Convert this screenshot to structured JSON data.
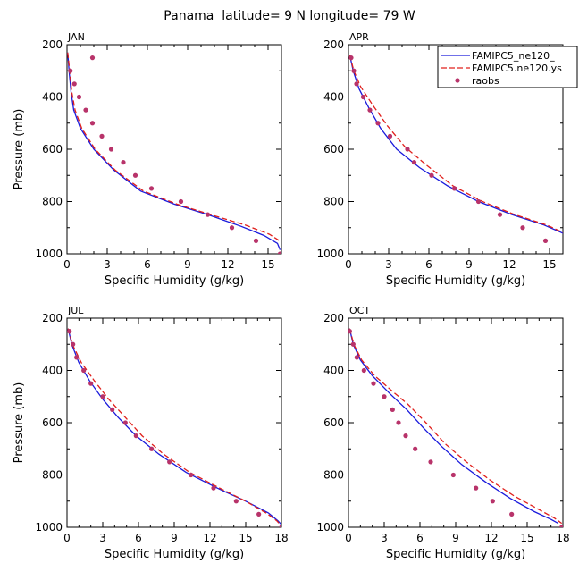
{
  "figure": {
    "title": "Panama  latitude= 9 N longitude= 79 W"
  },
  "legend": {
    "entries": [
      {
        "label": "FAMIPC5_ne120_",
        "style": "solid",
        "color": "#1a1adc"
      },
      {
        "label": "FAMIPC5.ne120.ys",
        "style": "dashed",
        "color": "#e0201c"
      },
      {
        "label": "raobs",
        "style": "dots",
        "color": "#b8336a"
      }
    ]
  },
  "chart_data": [
    {
      "type": "line",
      "panel_label": "JAN",
      "xlabel": "Specific Humidity (g/kg)",
      "ylabel": "Pressure (mb)",
      "xlim": [
        0,
        16
      ],
      "ylim": [
        200,
        1000
      ],
      "y_inverted": true,
      "xticks": [
        0,
        3,
        6,
        9,
        12,
        15,
        18
      ],
      "yticks": [
        200,
        400,
        600,
        800,
        1000
      ],
      "series": [
        {
          "name": "FAMIPC5_ne120_",
          "color": "#1a1adc",
          "dash": "solid",
          "points": [
            [
              0.05,
              230
            ],
            [
              0.15,
              300
            ],
            [
              0.3,
              380
            ],
            [
              0.5,
              450
            ],
            [
              1.0,
              520
            ],
            [
              2.0,
              600
            ],
            [
              3.5,
              680
            ],
            [
              5.5,
              760
            ],
            [
              8.0,
              810
            ],
            [
              10.5,
              850
            ],
            [
              13.0,
              895
            ],
            [
              14.7,
              930
            ],
            [
              15.7,
              960
            ],
            [
              15.9,
              985
            ]
          ]
        },
        {
          "name": "FAMIPC5.ne120.ys",
          "color": "#e0201c",
          "dash": "dashed",
          "points": [
            [
              0.05,
              230
            ],
            [
              0.2,
              300
            ],
            [
              0.35,
              380
            ],
            [
              0.6,
              450
            ],
            [
              1.1,
              520
            ],
            [
              2.1,
              600
            ],
            [
              3.6,
              680
            ],
            [
              5.7,
              760
            ],
            [
              8.2,
              810
            ],
            [
              10.7,
              850
            ],
            [
              13.3,
              890
            ],
            [
              15.1,
              925
            ],
            [
              16.0,
              955
            ],
            [
              16.2,
              985
            ]
          ]
        }
      ],
      "scatter": {
        "name": "raobs",
        "color": "#b8336a",
        "points": [
          [
            1.9,
            250
          ],
          [
            0.25,
            300
          ],
          [
            0.55,
            350
          ],
          [
            0.9,
            400
          ],
          [
            1.4,
            450
          ],
          [
            1.9,
            500
          ],
          [
            2.6,
            550
          ],
          [
            3.3,
            600
          ],
          [
            4.2,
            650
          ],
          [
            5.1,
            700
          ],
          [
            6.3,
            750
          ],
          [
            8.5,
            800
          ],
          [
            10.5,
            850
          ],
          [
            12.3,
            900
          ],
          [
            14.1,
            950
          ],
          [
            15.9,
            1000
          ]
        ]
      }
    },
    {
      "type": "line",
      "panel_label": "APR",
      "xlabel": "Specific Humidity (g/kg)",
      "ylabel": "",
      "xlim": [
        0,
        16
      ],
      "ylim": [
        200,
        1000
      ],
      "y_inverted": true,
      "xticks": [
        0,
        3,
        6,
        9,
        12,
        15,
        18
      ],
      "yticks": [
        200,
        400,
        600,
        800,
        1000
      ],
      "series": [
        {
          "name": "FAMIPC5_ne120_",
          "color": "#1a1adc",
          "dash": "solid",
          "points": [
            [
              0.1,
              240
            ],
            [
              0.35,
              300
            ],
            [
              0.8,
              370
            ],
            [
              1.5,
              440
            ],
            [
              2.4,
              520
            ],
            [
              3.6,
              600
            ],
            [
              5.3,
              670
            ],
            [
              7.4,
              740
            ],
            [
              9.7,
              800
            ],
            [
              12.2,
              850
            ],
            [
              14.6,
              890
            ],
            [
              16.4,
              930
            ],
            [
              17.0,
              960
            ],
            [
              17.2,
              985
            ]
          ]
        },
        {
          "name": "FAMIPC5.ne120.ys",
          "color": "#e0201c",
          "dash": "dashed",
          "points": [
            [
              0.1,
              240
            ],
            [
              0.4,
              300
            ],
            [
              0.9,
              360
            ],
            [
              1.8,
              430
            ],
            [
              2.9,
              510
            ],
            [
              4.2,
              590
            ],
            [
              5.8,
              660
            ],
            [
              7.8,
              740
            ],
            [
              10.0,
              800
            ],
            [
              12.4,
              850
            ],
            [
              14.8,
              890
            ],
            [
              16.5,
              930
            ],
            [
              17.1,
              960
            ],
            [
              17.2,
              985
            ]
          ]
        }
      ],
      "scatter": {
        "name": "raobs",
        "color": "#b8336a",
        "points": [
          [
            0.2,
            250
          ],
          [
            0.4,
            300
          ],
          [
            0.6,
            350
          ],
          [
            1.1,
            400
          ],
          [
            1.6,
            450
          ],
          [
            2.2,
            500
          ],
          [
            3.1,
            550
          ],
          [
            4.4,
            600
          ],
          [
            4.9,
            650
          ],
          [
            6.2,
            700
          ],
          [
            7.9,
            750
          ],
          [
            9.7,
            800
          ],
          [
            11.3,
            850
          ],
          [
            13.0,
            900
          ],
          [
            14.7,
            950
          ],
          [
            16.5,
            1000
          ]
        ]
      }
    },
    {
      "type": "line",
      "panel_label": "JUL",
      "xlabel": "Specific Humidity (g/kg)",
      "ylabel": "Pressure (mb)",
      "xlim": [
        0,
        18
      ],
      "ylim": [
        200,
        1000
      ],
      "y_inverted": true,
      "xticks": [
        0,
        3,
        6,
        9,
        12,
        15,
        18
      ],
      "yticks": [
        200,
        400,
        600,
        800,
        1000
      ],
      "series": [
        {
          "name": "FAMIPC5_ne120_",
          "color": "#1a1adc",
          "dash": "solid",
          "points": [
            [
              0.1,
              240
            ],
            [
              0.4,
              300
            ],
            [
              1.0,
              370
            ],
            [
              1.9,
              440
            ],
            [
              3.0,
              510
            ],
            [
              4.3,
              580
            ],
            [
              5.8,
              650
            ],
            [
              7.7,
              720
            ],
            [
              10.0,
              790
            ],
            [
              12.6,
              850
            ],
            [
              15.0,
              900
            ],
            [
              16.9,
              945
            ],
            [
              17.7,
              975
            ],
            [
              18.0,
              990
            ]
          ]
        },
        {
          "name": "FAMIPC5.ne120.ys",
          "color": "#e0201c",
          "dash": "dashed",
          "points": [
            [
              0.1,
              240
            ],
            [
              0.45,
              300
            ],
            [
              1.2,
              370
            ],
            [
              2.3,
              440
            ],
            [
              3.5,
              510
            ],
            [
              4.9,
              580
            ],
            [
              6.3,
              650
            ],
            [
              8.1,
              720
            ],
            [
              10.3,
              790
            ],
            [
              12.8,
              850
            ],
            [
              15.0,
              900
            ],
            [
              16.7,
              945
            ],
            [
              17.6,
              975
            ],
            [
              17.9,
              990
            ]
          ]
        }
      ],
      "scatter": {
        "name": "raobs",
        "color": "#b8336a",
        "points": [
          [
            0.2,
            250
          ],
          [
            0.5,
            300
          ],
          [
            0.8,
            350
          ],
          [
            1.4,
            400
          ],
          [
            2.0,
            450
          ],
          [
            3.0,
            500
          ],
          [
            3.8,
            550
          ],
          [
            4.9,
            600
          ],
          [
            5.8,
            650
          ],
          [
            7.1,
            700
          ],
          [
            8.6,
            750
          ],
          [
            10.4,
            800
          ],
          [
            12.3,
            850
          ],
          [
            14.2,
            900
          ],
          [
            16.1,
            950
          ],
          [
            18.0,
            1000
          ]
        ]
      }
    },
    {
      "type": "line",
      "panel_label": "OCT",
      "xlabel": "Specific Humidity (g/kg)",
      "ylabel": "",
      "xlim": [
        0,
        18
      ],
      "ylim": [
        200,
        1000
      ],
      "y_inverted": true,
      "xticks": [
        0,
        3,
        6,
        9,
        12,
        15,
        18
      ],
      "yticks": [
        200,
        400,
        600,
        800,
        1000
      ],
      "series": [
        {
          "name": "FAMIPC5_ne120_",
          "color": "#1a1adc",
          "dash": "solid",
          "points": [
            [
              0.1,
              240
            ],
            [
              0.4,
              300
            ],
            [
              1.0,
              360
            ],
            [
              2.0,
              420
            ],
            [
              3.5,
              490
            ],
            [
              4.9,
              550
            ],
            [
              6.3,
              620
            ],
            [
              7.8,
              690
            ],
            [
              9.5,
              760
            ],
            [
              11.6,
              830
            ],
            [
              13.6,
              890
            ],
            [
              15.6,
              940
            ],
            [
              17.0,
              970
            ],
            [
              17.6,
              985
            ]
          ]
        },
        {
          "name": "FAMIPC5.ne120.ys",
          "color": "#e0201c",
          "dash": "dashed",
          "points": [
            [
              0.1,
              240
            ],
            [
              0.45,
              300
            ],
            [
              1.1,
              360
            ],
            [
              2.2,
              420
            ],
            [
              3.7,
              480
            ],
            [
              5.0,
              530
            ],
            [
              6.5,
              600
            ],
            [
              8.1,
              680
            ],
            [
              9.9,
              750
            ],
            [
              11.9,
              820
            ],
            [
              13.9,
              880
            ],
            [
              15.9,
              930
            ],
            [
              17.3,
              965
            ],
            [
              17.9,
              985
            ]
          ]
        }
      ],
      "scatter": {
        "name": "raobs",
        "color": "#b8336a",
        "points": [
          [
            0.1,
            250
          ],
          [
            0.4,
            300
          ],
          [
            0.7,
            350
          ],
          [
            1.3,
            400
          ],
          [
            2.1,
            450
          ],
          [
            3.0,
            500
          ],
          [
            3.7,
            550
          ],
          [
            4.2,
            600
          ],
          [
            4.8,
            650
          ],
          [
            5.6,
            700
          ],
          [
            6.9,
            750
          ],
          [
            8.8,
            800
          ],
          [
            10.7,
            850
          ],
          [
            12.1,
            900
          ],
          [
            13.7,
            950
          ],
          [
            17.9,
            1000
          ]
        ]
      }
    }
  ]
}
